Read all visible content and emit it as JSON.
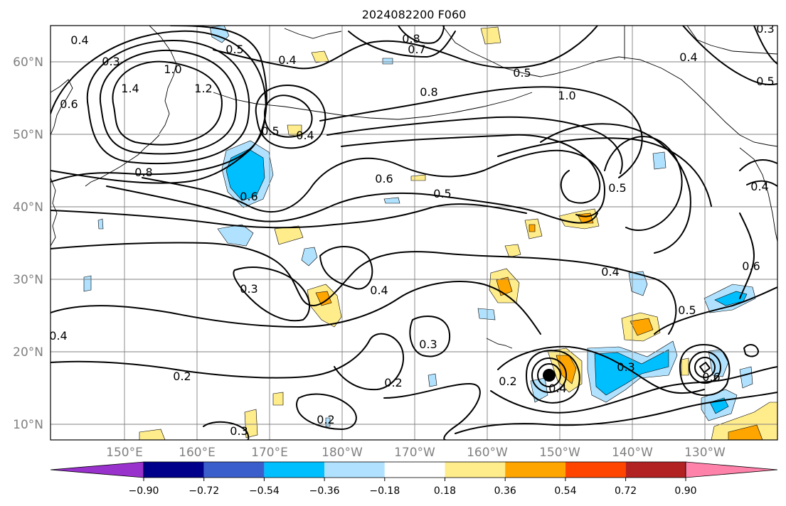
{
  "title": "2024082200 F060",
  "lat_labels": [
    "60°N",
    "50°N",
    "40°N",
    "30°N",
    "20°N",
    "10°N"
  ],
  "lon_labels": [
    "150°E",
    "160°E",
    "170°E",
    "180°W",
    "170°W",
    "160°W",
    "150°W",
    "140°W",
    "130°W"
  ],
  "colorbar": {
    "colors": [
      "#9932cc",
      "#00008b",
      "#3a5fcd",
      "#00bfff",
      "#b0e2ff",
      "#ffffff",
      "#ffec8b",
      "#ffa500",
      "#ff4500",
      "#b22222",
      "#ff82ab"
    ],
    "tick_labels": [
      "−0.90",
      "−0.72",
      "−0.54",
      "−0.36",
      "−0.18",
      "0.18",
      "0.36",
      "0.54",
      "0.72",
      "0.90"
    ]
  },
  "contour_labels": [
    "0.4",
    "0.3",
    "1.0",
    "1.4",
    "1.2",
    "0.5",
    "0.4",
    "0.6",
    "0.8",
    "0.7",
    "0.8",
    "1.0",
    "0.8",
    "0.6",
    "0.5",
    "0.5",
    "0.5",
    "0.4",
    "0.3",
    "0.4",
    "0.4",
    "0.3",
    "0.2",
    "0.2",
    "0.3",
    "0.2",
    "0.2",
    "0.4",
    "0.3",
    "0.5",
    "0.6",
    "0.6",
    "0.4",
    "0.5",
    "0.4",
    "0.3",
    "0.6",
    "0.5",
    "0.4"
  ]
}
